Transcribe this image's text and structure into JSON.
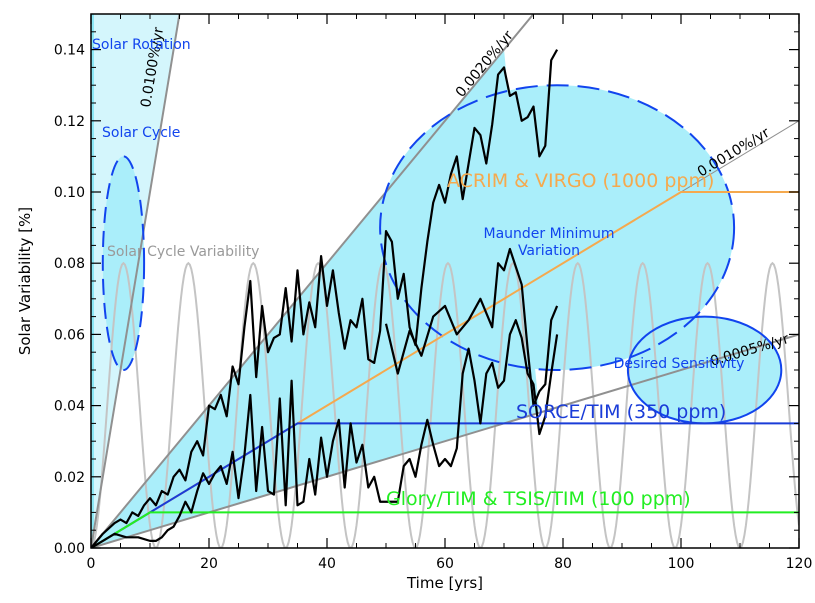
{
  "chart_data": {
    "type": "line",
    "title": "",
    "xlabel": "Time [yrs]",
    "ylabel": "Solar Variability [%]",
    "xlim": [
      0,
      120
    ],
    "ylim": [
      0,
      0.15
    ],
    "x_ticks": [
      0,
      20,
      40,
      60,
      80,
      100,
      120
    ],
    "y_ticks": [
      0.0,
      0.02,
      0.04,
      0.06,
      0.08,
      0.1,
      0.12,
      0.14
    ],
    "x_tick_labels": [
      "0",
      "20",
      "40",
      "60",
      "80",
      "100",
      "120"
    ],
    "y_tick_labels": [
      "0.00",
      "0.02",
      "0.04",
      "0.06",
      "0.08",
      "0.10",
      "0.12",
      "0.14"
    ],
    "grid": false,
    "colors": {
      "fill": "#aaeefa",
      "ellipse_edge": "#1144ee",
      "gray_line": "#909090",
      "cycle": "#c4c4c4",
      "acrim": "#f5a94e",
      "sorce": "#1a3cd8",
      "glory": "#22ee22",
      "black": "#000000",
      "left_bar": "#6ee0f0"
    },
    "trend_lines": [
      {
        "label": "0.0100%/yr",
        "rate": 0.01
      },
      {
        "label": "0.0020%/yr",
        "rate": 0.002
      },
      {
        "label": "0.0010%/yr",
        "rate": 0.001
      },
      {
        "label": "0.0005%/yr",
        "rate": 0.0005
      }
    ],
    "accuracy_curves": [
      {
        "label": "ACRIM & VIRGO (1000 ppm)",
        "level": 0.1,
        "rate": 0.001
      },
      {
        "label": "SORCE/TIM (350 ppm)",
        "level": 0.035,
        "rate": 0.001
      },
      {
        "label": "Glory/TIM & TSIS/TIM (100 ppm)",
        "level": 0.01,
        "rate": 0.001
      }
    ],
    "regions": [
      {
        "label": "Solar Rotation"
      },
      {
        "label": "Solar Cycle",
        "center": [
          5.5,
          0.08
        ],
        "radius": [
          3.5,
          0.03
        ]
      },
      {
        "label": "Maunder Minimum Variation",
        "center": [
          79,
          0.09
        ],
        "radius": [
          30,
          0.04
        ]
      },
      {
        "label": "Desired Sensitivity",
        "center": [
          104,
          0.05
        ],
        "radius": [
          13,
          0.015
        ]
      }
    ],
    "solar_cycle_variability": {
      "label": "Solar Cycle Variability",
      "amplitude": 0.08,
      "period": 11
    },
    "series": [
      {
        "x": [
          0,
          2,
          4,
          5,
          6,
          7,
          8,
          9,
          10,
          11,
          12,
          13,
          14,
          15,
          16,
          17,
          18,
          19,
          20,
          21,
          22,
          23,
          24,
          25,
          26,
          27,
          28,
          29,
          30,
          31,
          32,
          33,
          34,
          35,
          36,
          37,
          38,
          39,
          40,
          41,
          42,
          43,
          44,
          45,
          46,
          47,
          48,
          49,
          50,
          51,
          52,
          53,
          54,
          55,
          56,
          57,
          58,
          59,
          60,
          61,
          62,
          63,
          64,
          65,
          66,
          67,
          68,
          69,
          70,
          71,
          72,
          73,
          74,
          75,
          76,
          77,
          78,
          79
        ],
        "values": [
          0,
          0.004,
          0.007,
          0.008,
          0.007,
          0.01,
          0.009,
          0.012,
          0.014,
          0.012,
          0.016,
          0.015,
          0.02,
          0.022,
          0.019,
          0.027,
          0.03,
          0.026,
          0.04,
          0.039,
          0.043,
          0.037,
          0.051,
          0.046,
          0.062,
          0.075,
          0.048,
          0.068,
          0.055,
          0.059,
          0.06,
          0.073,
          0.058,
          0.078,
          0.06,
          0.069,
          0.062,
          0.082,
          0.068,
          0.078,
          0.066,
          0.056,
          0.064,
          0.062,
          0.07,
          0.053,
          0.052,
          0.061,
          0.089,
          0.086,
          0.07,
          0.077,
          0.062,
          0.057,
          0.073,
          0.086,
          0.097,
          0.102,
          0.097,
          0.105,
          0.11,
          0.098,
          0.108,
          0.118,
          0.116,
          0.108,
          0.119,
          0.133,
          0.135,
          0.127,
          0.128,
          0.12,
          0.121,
          0.124,
          0.11,
          0.113,
          0.137,
          0.14
        ]
      },
      {
        "x": [
          0,
          2,
          4,
          6,
          8,
          10,
          11,
          12,
          13,
          14,
          15,
          16,
          17,
          18,
          19,
          20,
          21,
          22,
          23,
          24,
          25,
          26,
          27,
          28,
          29,
          30,
          31,
          32,
          33,
          34,
          35,
          36,
          37,
          38,
          39,
          40,
          41,
          42,
          43,
          44,
          45,
          46,
          47,
          48,
          49,
          50,
          51,
          52,
          53,
          54,
          55,
          56,
          57,
          58,
          59,
          60,
          61,
          62,
          63,
          64,
          65,
          66,
          67,
          68,
          69,
          70,
          71,
          72,
          73,
          74,
          75,
          76,
          77,
          78,
          79
        ],
        "values": [
          0,
          0.002,
          0.004,
          0.003,
          0.003,
          0.002,
          0.002,
          0.003,
          0.005,
          0.006,
          0.009,
          0.013,
          0.01,
          0.016,
          0.021,
          0.018,
          0.021,
          0.023,
          0.018,
          0.027,
          0.014,
          0.026,
          0.043,
          0.016,
          0.034,
          0.016,
          0.015,
          0.042,
          0.012,
          0.047,
          0.012,
          0.013,
          0.025,
          0.015,
          0.031,
          0.02,
          0.03,
          0.036,
          0.017,
          0.035,
          0.024,
          0.029,
          0.017,
          0.02,
          0.013,
          0.013,
          0.013,
          0.013,
          0.023,
          0.025,
          0.02,
          0.029,
          0.036,
          0.029,
          0.023,
          0.025,
          0.023,
          0.028,
          0.049,
          0.056,
          0.047,
          0.035,
          0.049,
          0.052,
          0.045,
          0.047,
          0.06,
          0.064,
          0.059,
          0.049,
          0.046,
          0.032,
          0.037,
          0.049,
          0.06
        ]
      },
      {
        "x": [
          50,
          52,
          54,
          56,
          58,
          60,
          62,
          64,
          66,
          67,
          68,
          69,
          70,
          71,
          72,
          73,
          74,
          75,
          76,
          77,
          78,
          79
        ],
        "values": [
          0.063,
          0.049,
          0.061,
          0.054,
          0.065,
          0.068,
          0.06,
          0.064,
          0.07,
          0.066,
          0.062,
          0.08,
          0.078,
          0.084,
          0.079,
          0.074,
          0.056,
          0.04,
          0.044,
          0.046,
          0.064,
          0.068
        ]
      }
    ]
  }
}
